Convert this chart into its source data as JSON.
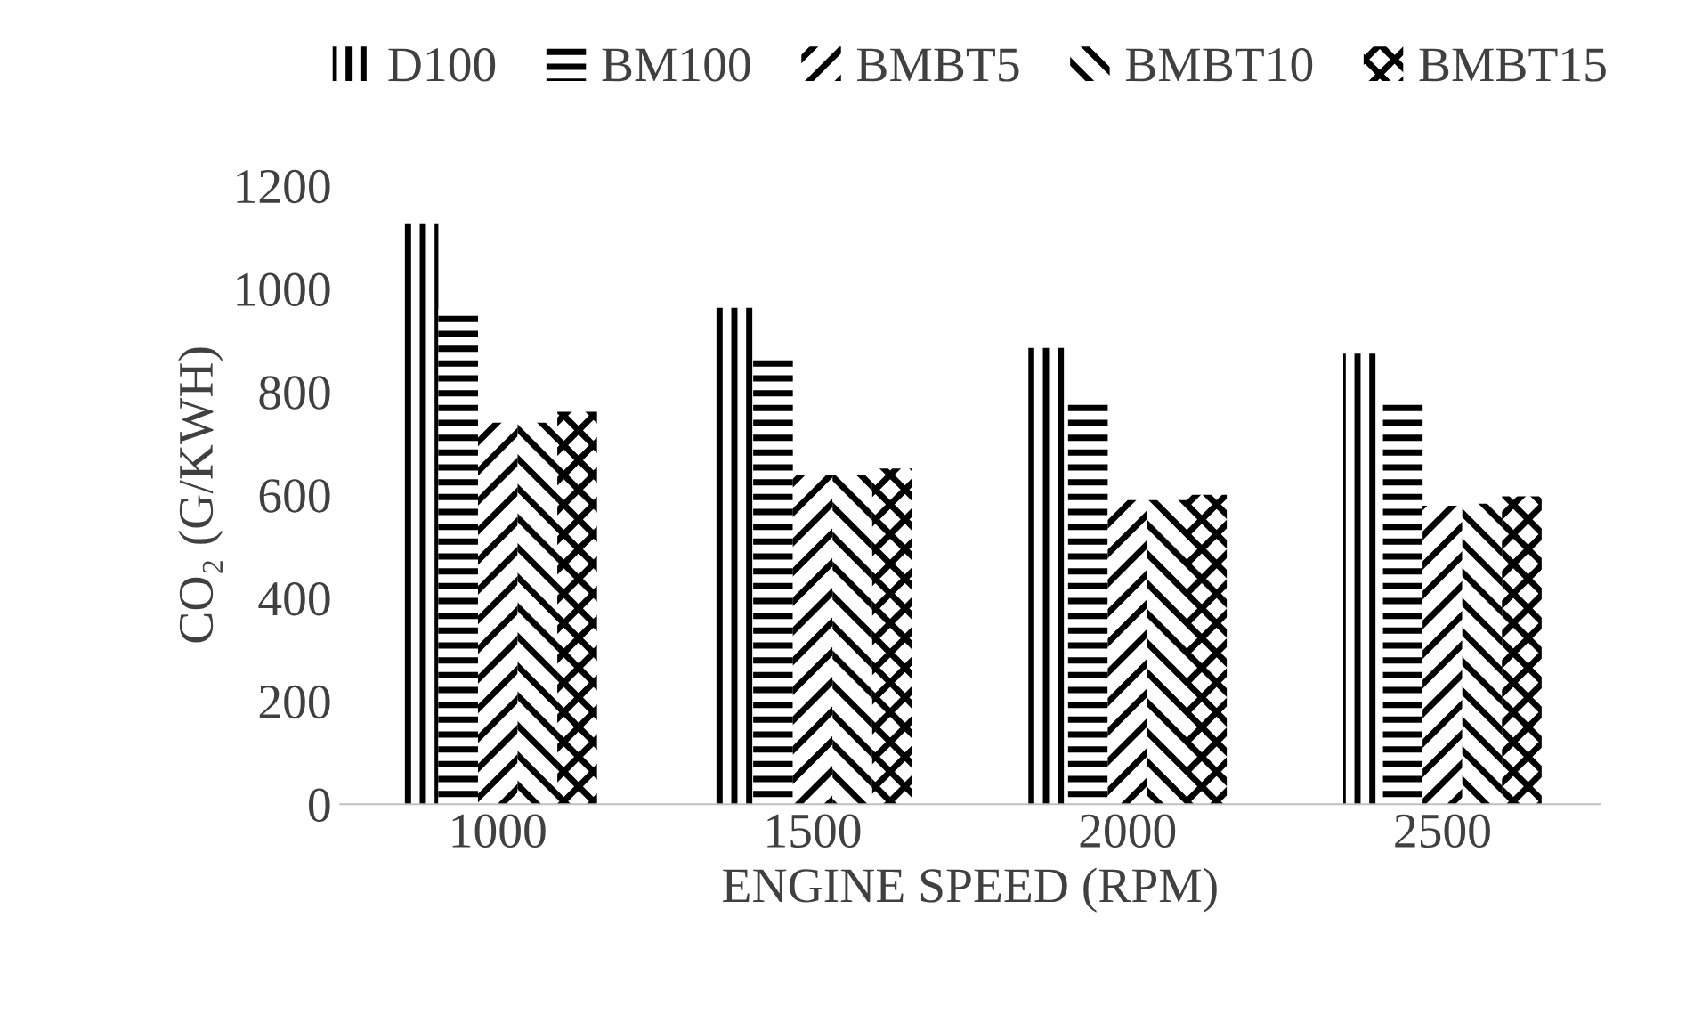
{
  "chart_data": {
    "type": "bar",
    "xlabel": "ENGINE SPEED (RPM)",
    "ylabel": "CO₂ (G/KWH)",
    "categories": [
      "1000",
      "1500",
      "2000",
      "2500"
    ],
    "series": [
      {
        "name": "D100",
        "color": "#000000",
        "values": [
          1125,
          963,
          885,
          874
        ]
      },
      {
        "name": "BM100",
        "color": "#000000",
        "values": [
          960,
          867,
          788,
          788
        ]
      },
      {
        "name": "BMBT5",
        "color": "#000000",
        "values": [
          740,
          638,
          590,
          579
        ]
      },
      {
        "name": "BMBT10",
        "color": "#000000",
        "values": [
          740,
          638,
          590,
          583
        ]
      },
      {
        "name": "BMBT15",
        "color": "#000000",
        "values": [
          761,
          651,
          600,
          597
        ]
      }
    ],
    "ylim": [
      0,
      1200
    ],
    "yticks": [
      0,
      200,
      400,
      600,
      800,
      1000,
      1200
    ],
    "grid": false,
    "legend": "top"
  }
}
